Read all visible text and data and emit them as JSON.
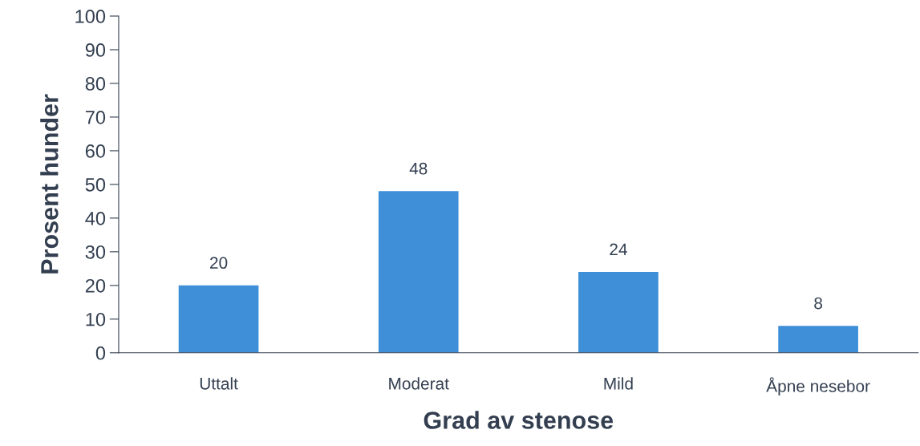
{
  "chart_data": {
    "type": "bar",
    "xlabel": "Grad av stenose",
    "ylabel": "Prosent hunder",
    "categories": [
      "Uttalt",
      "Moderat",
      "Mild",
      "Åpne nesebor"
    ],
    "values": [
      20,
      48,
      24,
      8
    ],
    "color": "#3f8fd8",
    "ylim": [
      0,
      100
    ],
    "yticks": [
      0,
      10,
      20,
      30,
      40,
      50,
      60,
      70,
      80,
      90,
      100
    ],
    "grid": false,
    "data_labels": true
  }
}
